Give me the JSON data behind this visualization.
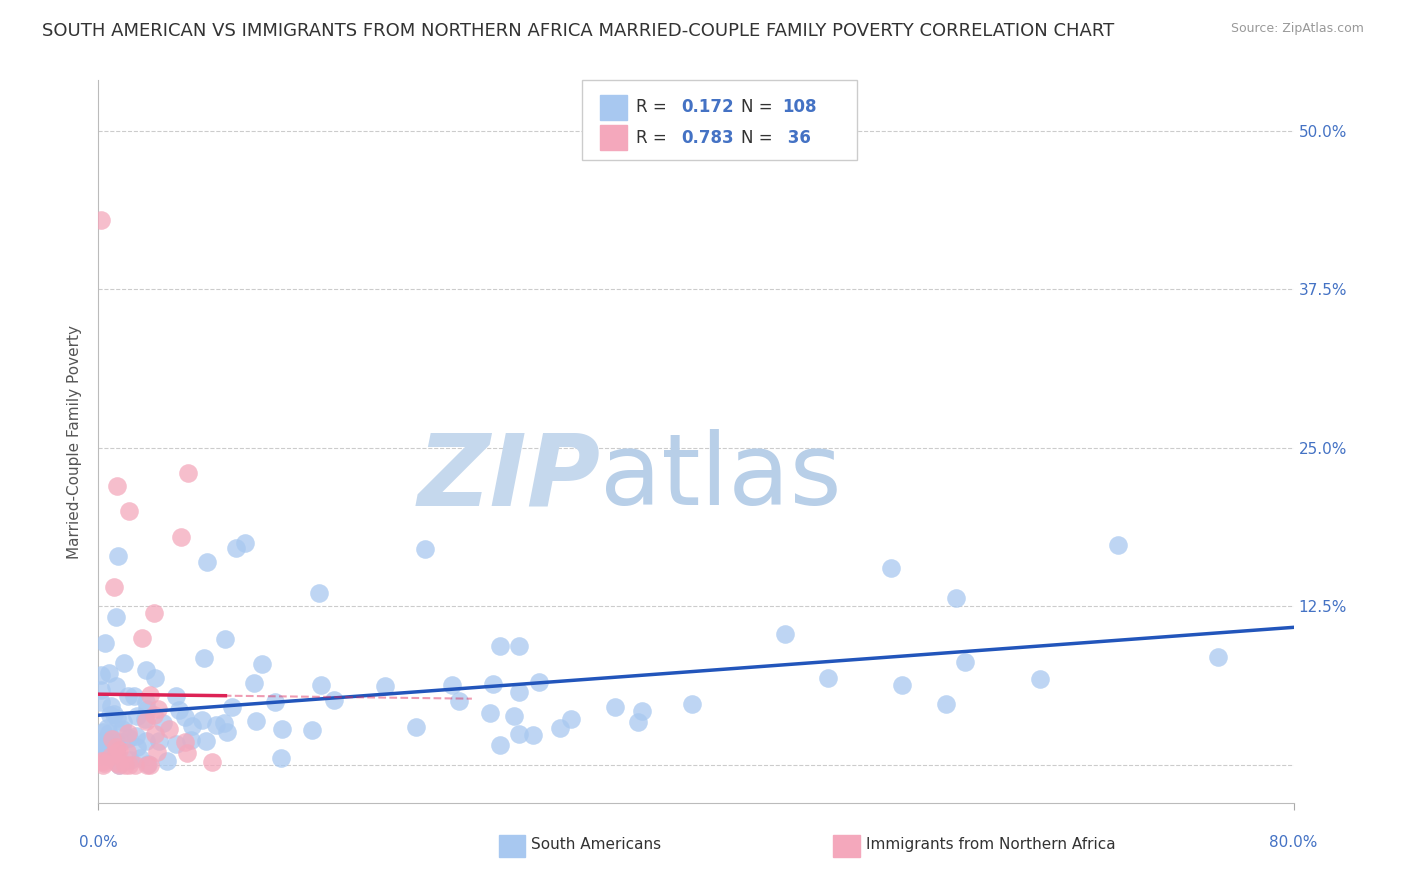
{
  "title": "SOUTH AMERICAN VS IMMIGRANTS FROM NORTHERN AFRICA MARRIED-COUPLE FAMILY POVERTY CORRELATION CHART",
  "source": "Source: ZipAtlas.com",
  "ylabel": "Married-Couple Family Poverty",
  "xlim": [
    0.0,
    0.8
  ],
  "ylim": [
    -0.03,
    0.54
  ],
  "yticks": [
    0.0,
    0.125,
    0.25,
    0.375,
    0.5
  ],
  "ytick_labels": [
    "",
    "12.5%",
    "25.0%",
    "37.5%",
    "50.0%"
  ],
  "label1": "South Americans",
  "label2": "Immigrants from Northern Africa",
  "color1": "#a8c8f0",
  "color2": "#f4a8bc",
  "trend_color1": "#2255bb",
  "trend_color2": "#dd2255",
  "background_color": "#ffffff",
  "grid_color": "#cccccc",
  "watermark_color": "#dce8f5",
  "title_fontsize": 13,
  "axis_label_fontsize": 11,
  "tick_fontsize": 11,
  "legend_color_r": "#333333",
  "legend_color_val": "#4472c4"
}
